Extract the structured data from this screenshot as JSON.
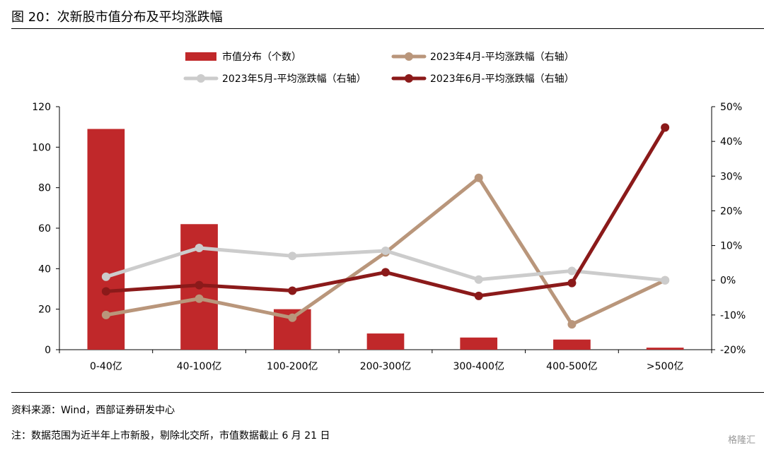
{
  "figure_title": "图 20：次新股市值分布及平均涨跌幅",
  "source_note": "资料来源：Wind，西部证券研发中心",
  "footnote": "注：数据范围为近半年上市新股，剔除北交所，市值数据截止 6 月 21 日",
  "watermark": "格隆汇",
  "chart_data": {
    "type": "bar",
    "categories": [
      "0-40亿",
      "40-100亿",
      "100-200亿",
      "200-300亿",
      "300-400亿",
      "400-500亿",
      ">500亿"
    ],
    "left_axis": {
      "ylim": [
        0,
        120
      ],
      "ticks": [
        "0",
        "20",
        "40",
        "60",
        "80",
        "100",
        "120"
      ]
    },
    "right_axis": {
      "ylim": [
        -20,
        50
      ],
      "ticks": [
        "-20%",
        "-10%",
        "0%",
        "10%",
        "20%",
        "30%",
        "40%",
        "50%"
      ]
    },
    "series": [
      {
        "name": "市值分布（个数）",
        "kind": "bar",
        "axis": "left",
        "color": "#c0282a",
        "values": [
          109,
          62,
          20,
          8,
          6,
          5,
          1
        ]
      },
      {
        "name": "2023年4月-平均涨跌幅（右轴）",
        "kind": "line",
        "axis": "right",
        "color": "#b9967b",
        "values": [
          -10,
          -5.3,
          -10.8,
          8,
          29.5,
          -12.7,
          0
        ]
      },
      {
        "name": "2023年5月-平均涨跌幅（右轴）",
        "kind": "line",
        "axis": "right",
        "color": "#cccccc",
        "values": [
          1,
          9.3,
          7,
          8.5,
          0.2,
          2.7,
          0
        ]
      },
      {
        "name": "2023年6月-平均涨跌幅（右轴）",
        "kind": "line",
        "axis": "right",
        "color": "#8b1a1a",
        "values": [
          -3.2,
          -1.4,
          -3,
          2.3,
          -4.5,
          -0.8,
          44
        ]
      }
    ],
    "legend_position": "top",
    "grid": false
  }
}
